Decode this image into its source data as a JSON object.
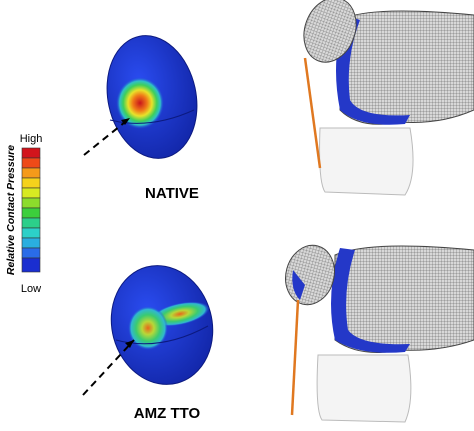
{
  "colorbar": {
    "title": "Relative Contact Pressure",
    "high_label": "High",
    "low_label": "Low"
  },
  "panels": [
    {
      "label": "NATIVE"
    },
    {
      "label": "AMZ TTO"
    }
  ]
}
